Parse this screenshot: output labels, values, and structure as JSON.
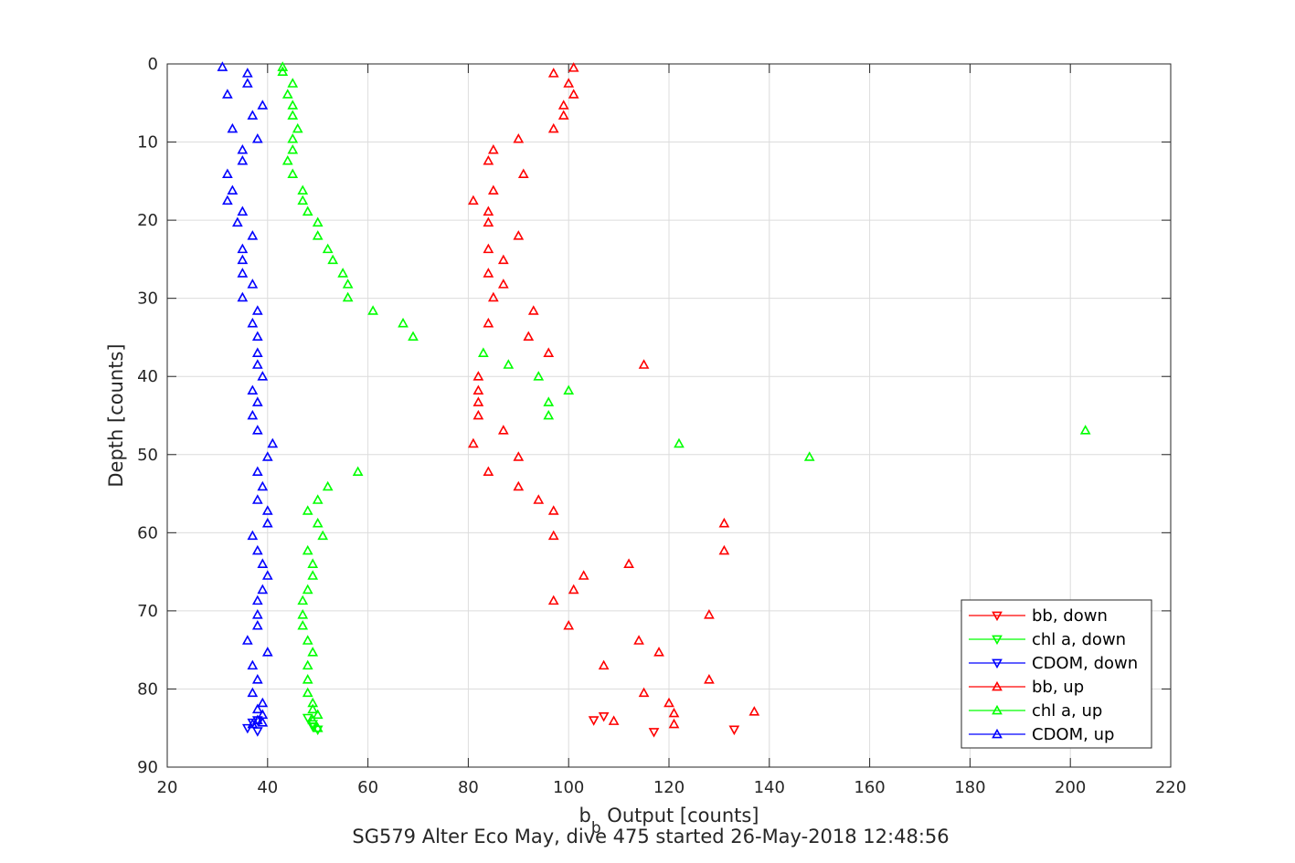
{
  "chart_data": {
    "type": "scatter",
    "title": "",
    "xlabel": {
      "base": "b",
      "subscript": "b",
      "rest": " Output [counts]"
    },
    "ylabel": "Depth [counts]",
    "caption": "SG579 Alter Eco May, dive 475 started 26-May-2018 12:48:56",
    "xlim": [
      20,
      220
    ],
    "ylim": [
      0,
      90
    ],
    "y_reversed": true,
    "xticks": [
      20,
      40,
      60,
      80,
      100,
      120,
      140,
      160,
      180,
      200,
      220
    ],
    "yticks": [
      0,
      10,
      20,
      30,
      40,
      50,
      60,
      70,
      80,
      90
    ],
    "grid": true,
    "legend_position": "bottom-right",
    "series": [
      {
        "name": "bb, down",
        "color": "#ff0000",
        "marker": "triangle-down",
        "points": [
          [
            105,
            84.0
          ],
          [
            107,
            83.5
          ],
          [
            117,
            85.5
          ],
          [
            133,
            85.2
          ]
        ]
      },
      {
        "name": "chl a, down",
        "color": "#00ff00",
        "marker": "triangle-down",
        "points": [
          [
            48,
            83.7
          ],
          [
            49,
            84.5
          ],
          [
            50,
            85.2
          ],
          [
            49,
            84.8
          ]
        ]
      },
      {
        "name": "CDOM, down",
        "color": "#0000ff",
        "marker": "triangle-down",
        "points": [
          [
            36,
            85.0
          ],
          [
            37,
            84.3
          ],
          [
            38,
            85.4
          ],
          [
            38,
            84.0
          ]
        ]
      },
      {
        "name": "bb, up",
        "color": "#ff0000",
        "marker": "triangle-up",
        "points": [
          [
            101,
            0.5
          ],
          [
            97,
            1.2
          ],
          [
            100,
            2.5
          ],
          [
            101,
            3.9
          ],
          [
            99,
            5.3
          ],
          [
            99,
            6.6
          ],
          [
            97,
            8.3
          ],
          [
            90,
            9.6
          ],
          [
            85,
            11.0
          ],
          [
            84,
            12.4
          ],
          [
            91,
            14.1
          ],
          [
            85,
            16.2
          ],
          [
            81,
            17.5
          ],
          [
            84,
            18.9
          ],
          [
            84,
            20.3
          ],
          [
            90,
            22.0
          ],
          [
            84,
            23.7
          ],
          [
            87,
            25.1
          ],
          [
            84,
            26.8
          ],
          [
            87,
            28.2
          ],
          [
            85,
            29.9
          ],
          [
            93,
            31.6
          ],
          [
            84,
            33.2
          ],
          [
            92,
            34.9
          ],
          [
            96,
            37.0
          ],
          [
            115,
            38.5
          ],
          [
            82,
            40.0
          ],
          [
            82,
            41.8
          ],
          [
            82,
            43.3
          ],
          [
            82,
            45.0
          ],
          [
            87,
            46.9
          ],
          [
            81,
            48.6
          ],
          [
            90,
            50.3
          ],
          [
            84,
            52.2
          ],
          [
            90,
            54.1
          ],
          [
            94,
            55.8
          ],
          [
            97,
            57.2
          ],
          [
            131,
            58.8
          ],
          [
            97,
            60.4
          ],
          [
            131,
            62.3
          ],
          [
            112,
            64.0
          ],
          [
            103,
            65.5
          ],
          [
            101,
            67.3
          ],
          [
            97,
            68.7
          ],
          [
            128,
            70.5
          ],
          [
            100,
            71.9
          ],
          [
            114,
            73.8
          ],
          [
            118,
            75.3
          ],
          [
            107,
            77.0
          ],
          [
            128,
            78.8
          ],
          [
            115,
            80.5
          ],
          [
            120,
            81.8
          ],
          [
            121,
            83.1
          ],
          [
            137,
            82.9
          ],
          [
            109,
            84.1
          ],
          [
            121,
            84.5
          ]
        ]
      },
      {
        "name": "chl a, up",
        "color": "#00ff00",
        "marker": "triangle-up",
        "points": [
          [
            43,
            0.4
          ],
          [
            43,
            1.0
          ],
          [
            45,
            2.5
          ],
          [
            44,
            3.9
          ],
          [
            45,
            5.3
          ],
          [
            45,
            6.6
          ],
          [
            46,
            8.3
          ],
          [
            45,
            9.6
          ],
          [
            45,
            11.0
          ],
          [
            44,
            12.4
          ],
          [
            45,
            14.1
          ],
          [
            47,
            16.2
          ],
          [
            47,
            17.5
          ],
          [
            48,
            18.9
          ],
          [
            50,
            20.3
          ],
          [
            50,
            22.0
          ],
          [
            52,
            23.7
          ],
          [
            53,
            25.1
          ],
          [
            55,
            26.8
          ],
          [
            56,
            28.2
          ],
          [
            56,
            29.9
          ],
          [
            61,
            31.6
          ],
          [
            67,
            33.2
          ],
          [
            69,
            34.9
          ],
          [
            83,
            37.0
          ],
          [
            88,
            38.5
          ],
          [
            94,
            40.0
          ],
          [
            100,
            41.8
          ],
          [
            96,
            43.3
          ],
          [
            96,
            45.0
          ],
          [
            203,
            46.9
          ],
          [
            122,
            48.6
          ],
          [
            148,
            50.3
          ],
          [
            58,
            52.2
          ],
          [
            52,
            54.1
          ],
          [
            50,
            55.8
          ],
          [
            48,
            57.2
          ],
          [
            50,
            58.8
          ],
          [
            51,
            60.4
          ],
          [
            48,
            62.3
          ],
          [
            49,
            64.0
          ],
          [
            49,
            65.5
          ],
          [
            48,
            67.3
          ],
          [
            47,
            68.7
          ],
          [
            47,
            70.5
          ],
          [
            47,
            71.9
          ],
          [
            48,
            73.8
          ],
          [
            49,
            75.3
          ],
          [
            48,
            77.0
          ],
          [
            48,
            78.8
          ],
          [
            48,
            80.5
          ],
          [
            49,
            81.8
          ],
          [
            49,
            82.6
          ],
          [
            50,
            83.3
          ],
          [
            49,
            84.0
          ],
          [
            50,
            85.0
          ]
        ]
      },
      {
        "name": "CDOM, up",
        "color": "#0000ff",
        "marker": "triangle-up",
        "points": [
          [
            31,
            0.4
          ],
          [
            36,
            1.2
          ],
          [
            36,
            2.5
          ],
          [
            32,
            3.9
          ],
          [
            39,
            5.3
          ],
          [
            37,
            6.6
          ],
          [
            33,
            8.3
          ],
          [
            38,
            9.6
          ],
          [
            35,
            11.0
          ],
          [
            35,
            12.4
          ],
          [
            32,
            14.1
          ],
          [
            33,
            16.2
          ],
          [
            32,
            17.5
          ],
          [
            35,
            18.9
          ],
          [
            34,
            20.3
          ],
          [
            37,
            22.0
          ],
          [
            35,
            23.7
          ],
          [
            35,
            25.1
          ],
          [
            35,
            26.8
          ],
          [
            37,
            28.2
          ],
          [
            35,
            29.9
          ],
          [
            38,
            31.6
          ],
          [
            37,
            33.2
          ],
          [
            38,
            34.9
          ],
          [
            38,
            37.0
          ],
          [
            38,
            38.5
          ],
          [
            39,
            40.0
          ],
          [
            37,
            41.8
          ],
          [
            38,
            43.3
          ],
          [
            37,
            45.0
          ],
          [
            38,
            46.9
          ],
          [
            41,
            48.6
          ],
          [
            40,
            50.3
          ],
          [
            38,
            52.2
          ],
          [
            39,
            54.1
          ],
          [
            38,
            55.8
          ],
          [
            40,
            57.2
          ],
          [
            40,
            58.8
          ],
          [
            37,
            60.4
          ],
          [
            38,
            62.3
          ],
          [
            39,
            64.0
          ],
          [
            40,
            65.5
          ],
          [
            39,
            67.3
          ],
          [
            38,
            68.7
          ],
          [
            38,
            70.5
          ],
          [
            38,
            71.9
          ],
          [
            36,
            73.8
          ],
          [
            40,
            75.3
          ],
          [
            37,
            77.0
          ],
          [
            38,
            78.8
          ],
          [
            37,
            80.5
          ],
          [
            39,
            81.8
          ],
          [
            38,
            82.6
          ],
          [
            39,
            83.3
          ],
          [
            38,
            84.0
          ],
          [
            37,
            84.5
          ],
          [
            39,
            84.3
          ]
        ]
      }
    ]
  }
}
